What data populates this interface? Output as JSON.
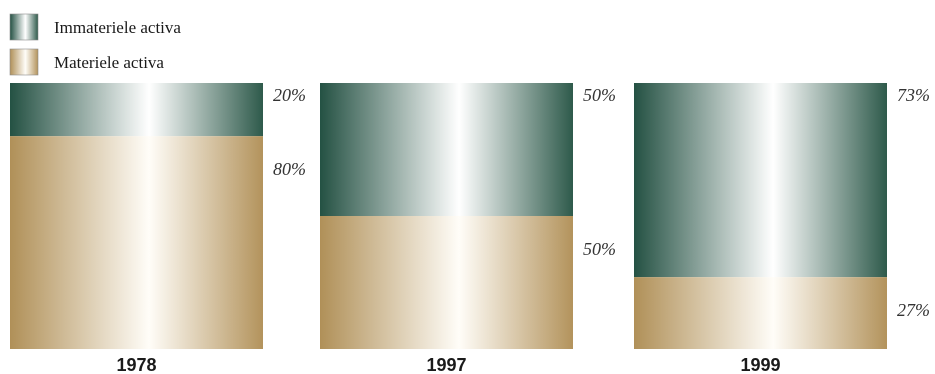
{
  "colors": {
    "intangible_dark": "#245143",
    "intangible_light": "#ffffff",
    "tangible_dark": "#b09058",
    "tangible_light": "#fffdf8"
  },
  "chart_data": {
    "type": "bar",
    "stacked": true,
    "normalized_percent": true,
    "categories": [
      "1978",
      "1997",
      "1999"
    ],
    "series": [
      {
        "name": "Immateriele activa",
        "values": [
          20,
          50,
          73
        ],
        "labels": [
          "20%",
          "50%",
          "73%"
        ],
        "color": "#245143"
      },
      {
        "name": "Materiele activa",
        "values": [
          80,
          50,
          27
        ],
        "labels": [
          "80%",
          "50%",
          "27%"
        ],
        "color": "#b09058"
      }
    ],
    "ylim": [
      0,
      100
    ],
    "grid": false,
    "legend": "top-left"
  }
}
